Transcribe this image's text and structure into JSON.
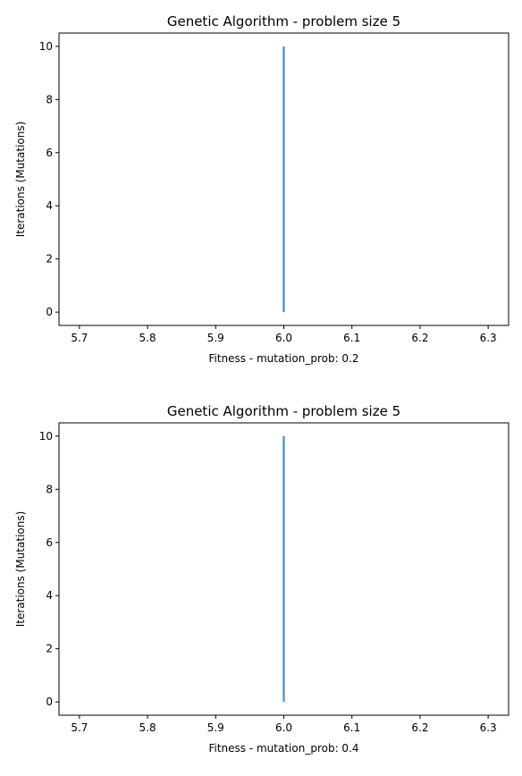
{
  "chart_data": [
    {
      "type": "line",
      "title": "Genetic Algorithm - problem size 5",
      "xlabel": "Fitness - mutation_prob: 0.2",
      "ylabel": "Iterations (Mutations)",
      "xlim": [
        5.67,
        6.33
      ],
      "ylim": [
        -0.5,
        10.5
      ],
      "x_ticks": [
        5.7,
        5.8,
        5.9,
        6.0,
        6.1,
        6.2,
        6.3
      ],
      "x_tick_labels": [
        "5.7",
        "5.8",
        "5.9",
        "6.0",
        "6.1",
        "6.2",
        "6.3"
      ],
      "y_ticks": [
        0,
        2,
        4,
        6,
        8,
        10
      ],
      "y_tick_labels": [
        "0",
        "2",
        "4",
        "6",
        "8",
        "10"
      ],
      "grid": false,
      "series": [
        {
          "color": "#5b9bc8",
          "x": [
            6.0,
            6.0,
            6.0,
            6.0,
            6.0,
            6.0,
            6.0,
            6.0,
            6.0,
            6.0,
            6.0
          ],
          "y": [
            0,
            1,
            2,
            3,
            4,
            5,
            6,
            7,
            8,
            9,
            10
          ]
        }
      ]
    },
    {
      "type": "line",
      "title": "Genetic Algorithm - problem size 5",
      "xlabel": "Fitness - mutation_prob: 0.4",
      "ylabel": "Iterations (Mutations)",
      "xlim": [
        5.67,
        6.33
      ],
      "ylim": [
        -0.5,
        10.5
      ],
      "x_ticks": [
        5.7,
        5.8,
        5.9,
        6.0,
        6.1,
        6.2,
        6.3
      ],
      "x_tick_labels": [
        "5.7",
        "5.8",
        "5.9",
        "6.0",
        "6.1",
        "6.2",
        "6.3"
      ],
      "y_ticks": [
        0,
        2,
        4,
        6,
        8,
        10
      ],
      "y_tick_labels": [
        "0",
        "2",
        "4",
        "6",
        "8",
        "10"
      ],
      "grid": false,
      "series": [
        {
          "color": "#5b9bc8",
          "x": [
            6.0,
            6.0,
            6.0,
            6.0,
            6.0,
            6.0,
            6.0,
            6.0,
            6.0,
            6.0,
            6.0
          ],
          "y": [
            0,
            1,
            2,
            3,
            4,
            5,
            6,
            7,
            8,
            9,
            10
          ]
        }
      ]
    }
  ]
}
